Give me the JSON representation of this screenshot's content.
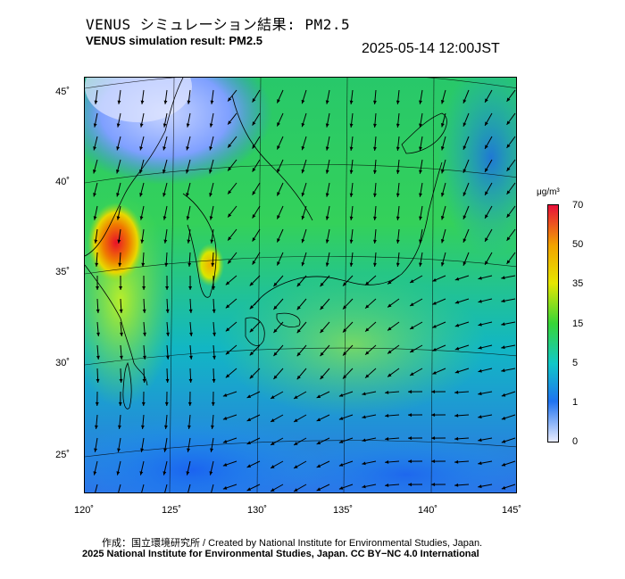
{
  "header": {
    "title_jp": "VENUS シミュレーション結果: PM2.5",
    "title_en": "VENUS simulation result: PM2.5",
    "timestamp": "2025-05-14 12:00JST"
  },
  "map": {
    "lat_ticks": [
      "45˚",
      "40˚",
      "35˚",
      "30˚",
      "25˚"
    ],
    "lon_ticks": [
      "120˚",
      "125˚",
      "130˚",
      "135˚",
      "140˚",
      "145˚"
    ],
    "field": "PM2.5 concentration with surface wind vectors"
  },
  "colorbar": {
    "unit": "μg/m³",
    "tick_labels": [
      "70",
      "50",
      "35",
      "15",
      "5",
      "1",
      "0"
    ],
    "colors": [
      "#e8103a",
      "#f2a300",
      "#e6e600",
      "#37d637",
      "#10c8c8",
      "#1f73f0",
      "#e9ecff"
    ]
  },
  "footer": {
    "credit_line1": "作成：国立環境研究所 / Created by National Institute for Environmental Studies, Japan.",
    "credit_line2": "2025 National Institute for Environmental Studies, Japan. CC BY−NC 4.0 International"
  }
}
